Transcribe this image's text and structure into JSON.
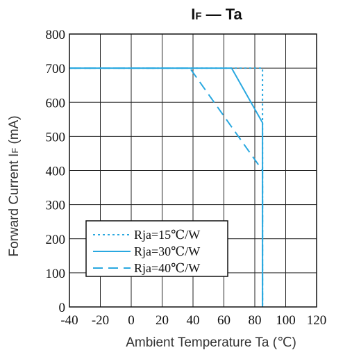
{
  "chart_data": {
    "type": "line",
    "title": {
      "main": "I",
      "sub": "F",
      "rest": " — Ta"
    },
    "xlabel": "Ambient Temperature  Ta (℃)",
    "ylabel": {
      "main": "Forward Current  I",
      "sub": "F",
      "rest": " (mA)"
    },
    "xlim": [
      -40,
      120
    ],
    "ylim": [
      0,
      800
    ],
    "xticks": [
      "-40",
      "-20",
      "0",
      "20",
      "40",
      "60",
      "80",
      "100",
      "120"
    ],
    "yticks": [
      "0",
      "100",
      "200",
      "300",
      "400",
      "500",
      "600",
      "700",
      "800"
    ],
    "grid": true,
    "legend_position": "bottom-left",
    "line_color": "#29a8e0",
    "series": [
      {
        "name": "Rja=15℃/W",
        "style": "dotted",
        "points": [
          [
            -40,
            700
          ],
          [
            85,
            700
          ],
          [
            85,
            0
          ]
        ]
      },
      {
        "name": "Rja=30℃/W",
        "style": "solid",
        "points": [
          [
            -40,
            700
          ],
          [
            65,
            700
          ],
          [
            85,
            540
          ],
          [
            85,
            0
          ]
        ]
      },
      {
        "name": "Rja=40℃/W",
        "style": "dashed",
        "points": [
          [
            -40,
            700
          ],
          [
            38,
            700
          ],
          [
            85,
            400
          ],
          [
            85,
            0
          ]
        ]
      }
    ]
  }
}
